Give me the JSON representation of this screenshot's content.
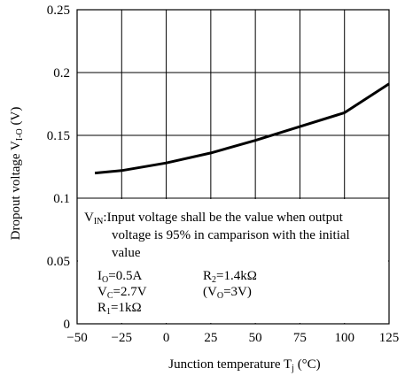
{
  "chart_data": {
    "type": "line",
    "xlabel": "Junction temperature T",
    "xlabel_sub": "j",
    "xlabel_unit": " (°C)",
    "ylabel": "Dropout voltage V",
    "ylabel_sub": "I-O",
    "ylabel_unit": " (V)",
    "xlim": [
      -50,
      125
    ],
    "ylim": [
      0,
      0.25
    ],
    "xticks": [
      -50,
      -25,
      0,
      25,
      50,
      75,
      100,
      125
    ],
    "xtick_labels": [
      "−50",
      "−25",
      "0",
      "25",
      "50",
      "75",
      "100",
      "125"
    ],
    "yticks": [
      0,
      0.05,
      0.1,
      0.15,
      0.2,
      0.25
    ],
    "ytick_labels": [
      "0",
      "0.05",
      "0.1",
      "0.15",
      "0.2",
      "0.25"
    ],
    "grid": true,
    "series": [
      {
        "x": [
          -40,
          -25,
          0,
          25,
          50,
          75,
          100,
          125
        ],
        "y": [
          0.12,
          0.122,
          0.128,
          0.136,
          0.146,
          0.157,
          0.168,
          0.191
        ]
      }
    ],
    "annotations": {
      "vin_prefix": "V",
      "vin_sub": "IN",
      "vin_line1": ":Input voltage shall be the value when output",
      "vin_line2": "voltage is 95% in camparison with the initial",
      "vin_line3": "value",
      "io_main": "I",
      "io_sub": "O",
      "io_val": "=0.5A",
      "r2_main": "R",
      "r2_sub": "2",
      "r2_val": "=1.4kΩ",
      "vc_main": "V",
      "vc_sub": "C",
      "vc_val": "=2.7V",
      "vo_open": "(V",
      "vo_sub": "O",
      "vo_val": "=3V)",
      "r1_main": "R",
      "r1_sub": "1",
      "r1_val": "=1kΩ"
    }
  }
}
